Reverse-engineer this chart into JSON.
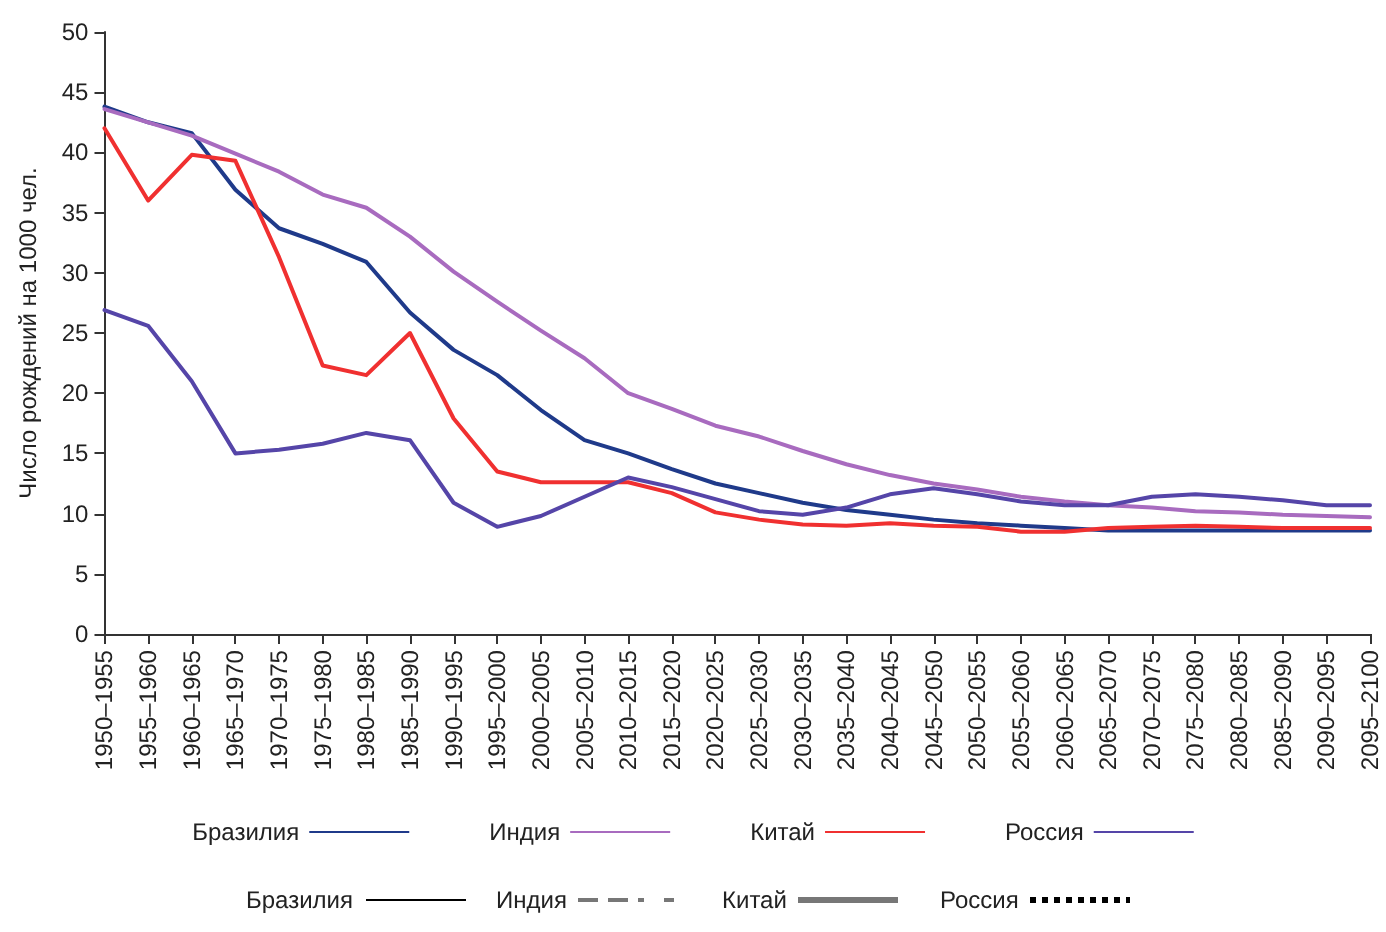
{
  "chart_data": {
    "type": "line",
    "ylabel": "Число рождений на 1000 чел.",
    "categories": [
      "1950–1955",
      "1955–1960",
      "1960–1965",
      "1965–1970",
      "1970–1975",
      "1975–1980",
      "1980–1985",
      "1985–1990",
      "1990–1995",
      "1995–2000",
      "2000–2005",
      "2005–2010",
      "2010–2015",
      "2015–2020",
      "2020–2025",
      "2025–2030",
      "2030–2035",
      "2035–2040",
      "2040–2045",
      "2045–2050",
      "2050–2055",
      "2055–2060",
      "2060–2065",
      "2065–2070",
      "2070–2075",
      "2075–2080",
      "2080–2085",
      "2085–2090",
      "2090–2095",
      "2095–2100"
    ],
    "series": [
      {
        "name": "Бразилия",
        "color": "#1f3a8a",
        "values": [
          43.8,
          42.5,
          41.6,
          36.9,
          33.7,
          32.4,
          30.9,
          26.7,
          23.6,
          21.5,
          18.6,
          16.1,
          15.0,
          13.7,
          12.5,
          11.7,
          10.9,
          10.3,
          9.9,
          9.5,
          9.2,
          9.0,
          8.8,
          8.6,
          8.6,
          8.6,
          8.6,
          8.6,
          8.6,
          8.6
        ]
      },
      {
        "name": "Индия",
        "color": "#a86bbf",
        "values": [
          43.6,
          42.5,
          41.4,
          39.9,
          38.4,
          36.5,
          35.4,
          33.0,
          30.1,
          27.6,
          25.2,
          22.9,
          20.0,
          18.7,
          17.3,
          16.4,
          15.2,
          14.1,
          13.2,
          12.5,
          12.0,
          11.4,
          11.0,
          10.7,
          10.5,
          10.2,
          10.1,
          9.9,
          9.8,
          9.7
        ]
      },
      {
        "name": "Китай",
        "color": "#f03030",
        "values": [
          42.0,
          36.0,
          39.8,
          39.3,
          31.3,
          22.3,
          21.5,
          25.0,
          17.9,
          13.5,
          12.6,
          12.6,
          12.6,
          11.7,
          10.1,
          9.5,
          9.1,
          9.0,
          9.2,
          9.0,
          8.9,
          8.5,
          8.5,
          8.8,
          8.9,
          9.0,
          8.9,
          8.8,
          8.8,
          8.8
        ]
      },
      {
        "name": "Россия",
        "color": "#5545a8",
        "values": [
          26.9,
          25.6,
          21.0,
          15.0,
          15.3,
          15.8,
          16.7,
          16.1,
          10.9,
          8.9,
          9.8,
          11.4,
          13.0,
          12.2,
          11.2,
          10.2,
          9.9,
          10.5,
          11.6,
          12.1,
          11.6,
          11.0,
          10.7,
          10.7,
          11.4,
          11.6,
          11.4,
          11.1,
          10.7,
          10.7
        ]
      }
    ],
    "ylim": [
      0,
      50
    ],
    "yticks": [
      0,
      5,
      10,
      15,
      20,
      25,
      30,
      35,
      40,
      45,
      50
    ],
    "legend": "bottom",
    "grid": false,
    "marker": "none",
    "line_style": "solid",
    "annotations": [
      "Бразилия",
      "Индия",
      "Китай",
      "Россия"
    ]
  }
}
